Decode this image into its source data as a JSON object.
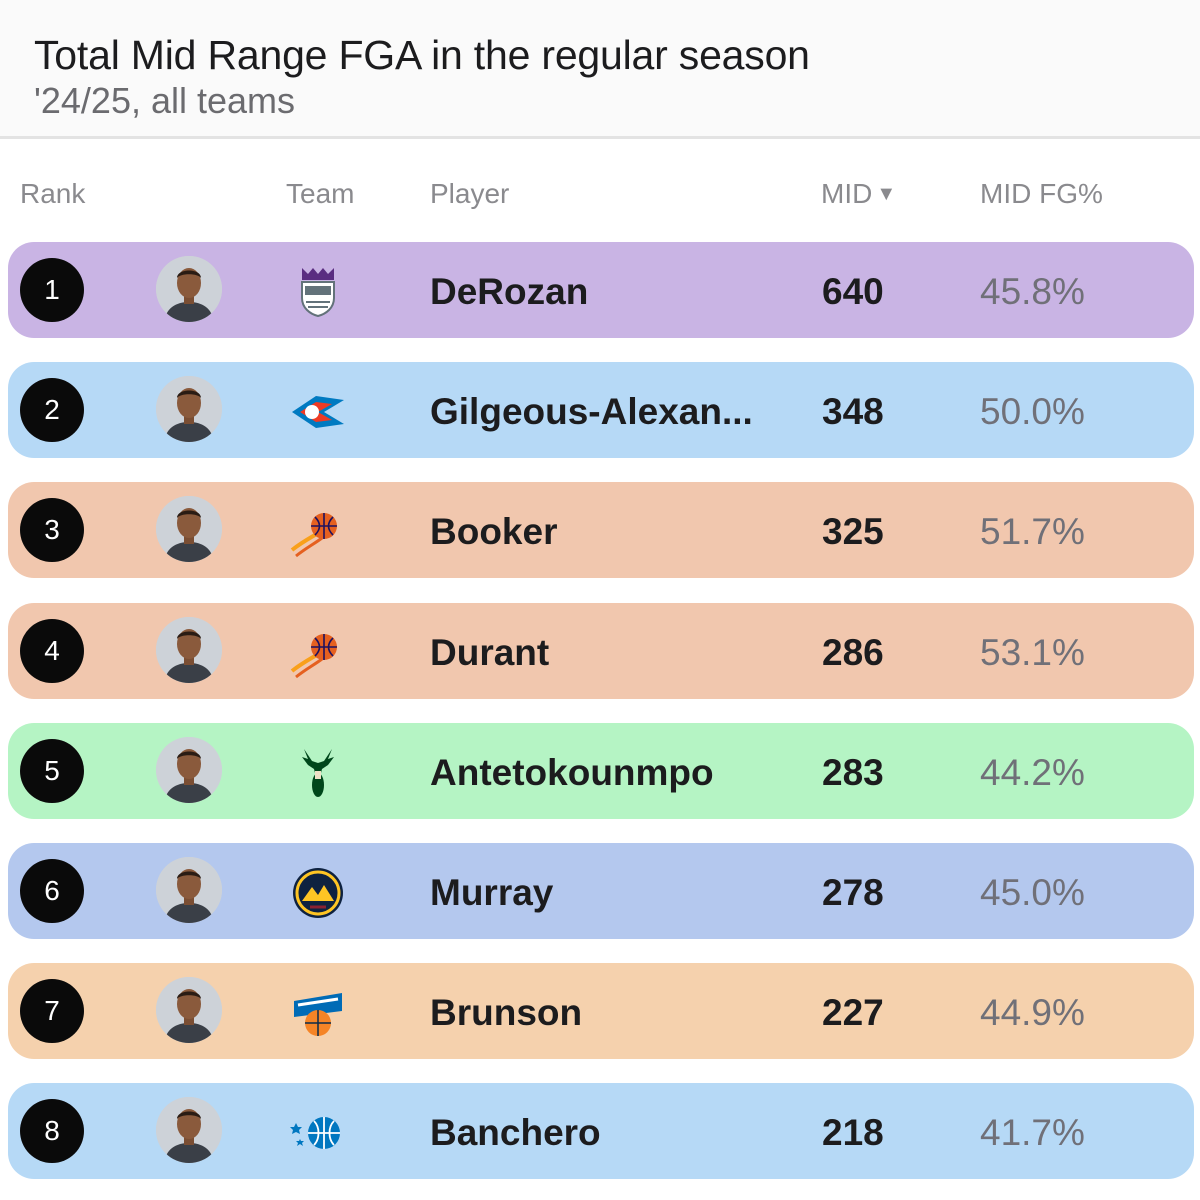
{
  "header": {
    "title": "Total Mid Range FGA in the regular season",
    "subtitle": "'24/25, all teams"
  },
  "columns": {
    "rank": "Rank",
    "team": "Team",
    "player": "Player",
    "mid": "MID",
    "mid_sort_icon": "▼",
    "mid_fg": "MID FG%"
  },
  "rows": [
    {
      "rank": "1",
      "player": "DeRozan",
      "mid": "640",
      "mid_fg": "45.8%",
      "team_logo": "kings-logo",
      "color": "#c9b4e4"
    },
    {
      "rank": "2",
      "player": "Gilgeous-Alexan...",
      "mid": "348",
      "mid_fg": "50.0%",
      "team_logo": "thunder-logo",
      "color": "#b6d9f6"
    },
    {
      "rank": "3",
      "player": "Booker",
      "mid": "325",
      "mid_fg": "51.7%",
      "team_logo": "suns-logo",
      "color": "#f1c7ae"
    },
    {
      "rank": "4",
      "player": "Durant",
      "mid": "286",
      "mid_fg": "53.1%",
      "team_logo": "suns-logo",
      "color": "#f1c7ae"
    },
    {
      "rank": "5",
      "player": "Antetokounmpo",
      "mid": "283",
      "mid_fg": "44.2%",
      "team_logo": "bucks-logo",
      "color": "#b5f4c4"
    },
    {
      "rank": "6",
      "player": "Murray",
      "mid": "278",
      "mid_fg": "45.0%",
      "team_logo": "nuggets-logo",
      "color": "#b4c8ee"
    },
    {
      "rank": "7",
      "player": "Brunson",
      "mid": "227",
      "mid_fg": "44.9%",
      "team_logo": "knicks-logo",
      "color": "#f5d1ad"
    },
    {
      "rank": "8",
      "player": "Banchero",
      "mid": "218",
      "mid_fg": "41.7%",
      "team_logo": "magic-logo",
      "color": "#b6d9f6"
    }
  ]
}
